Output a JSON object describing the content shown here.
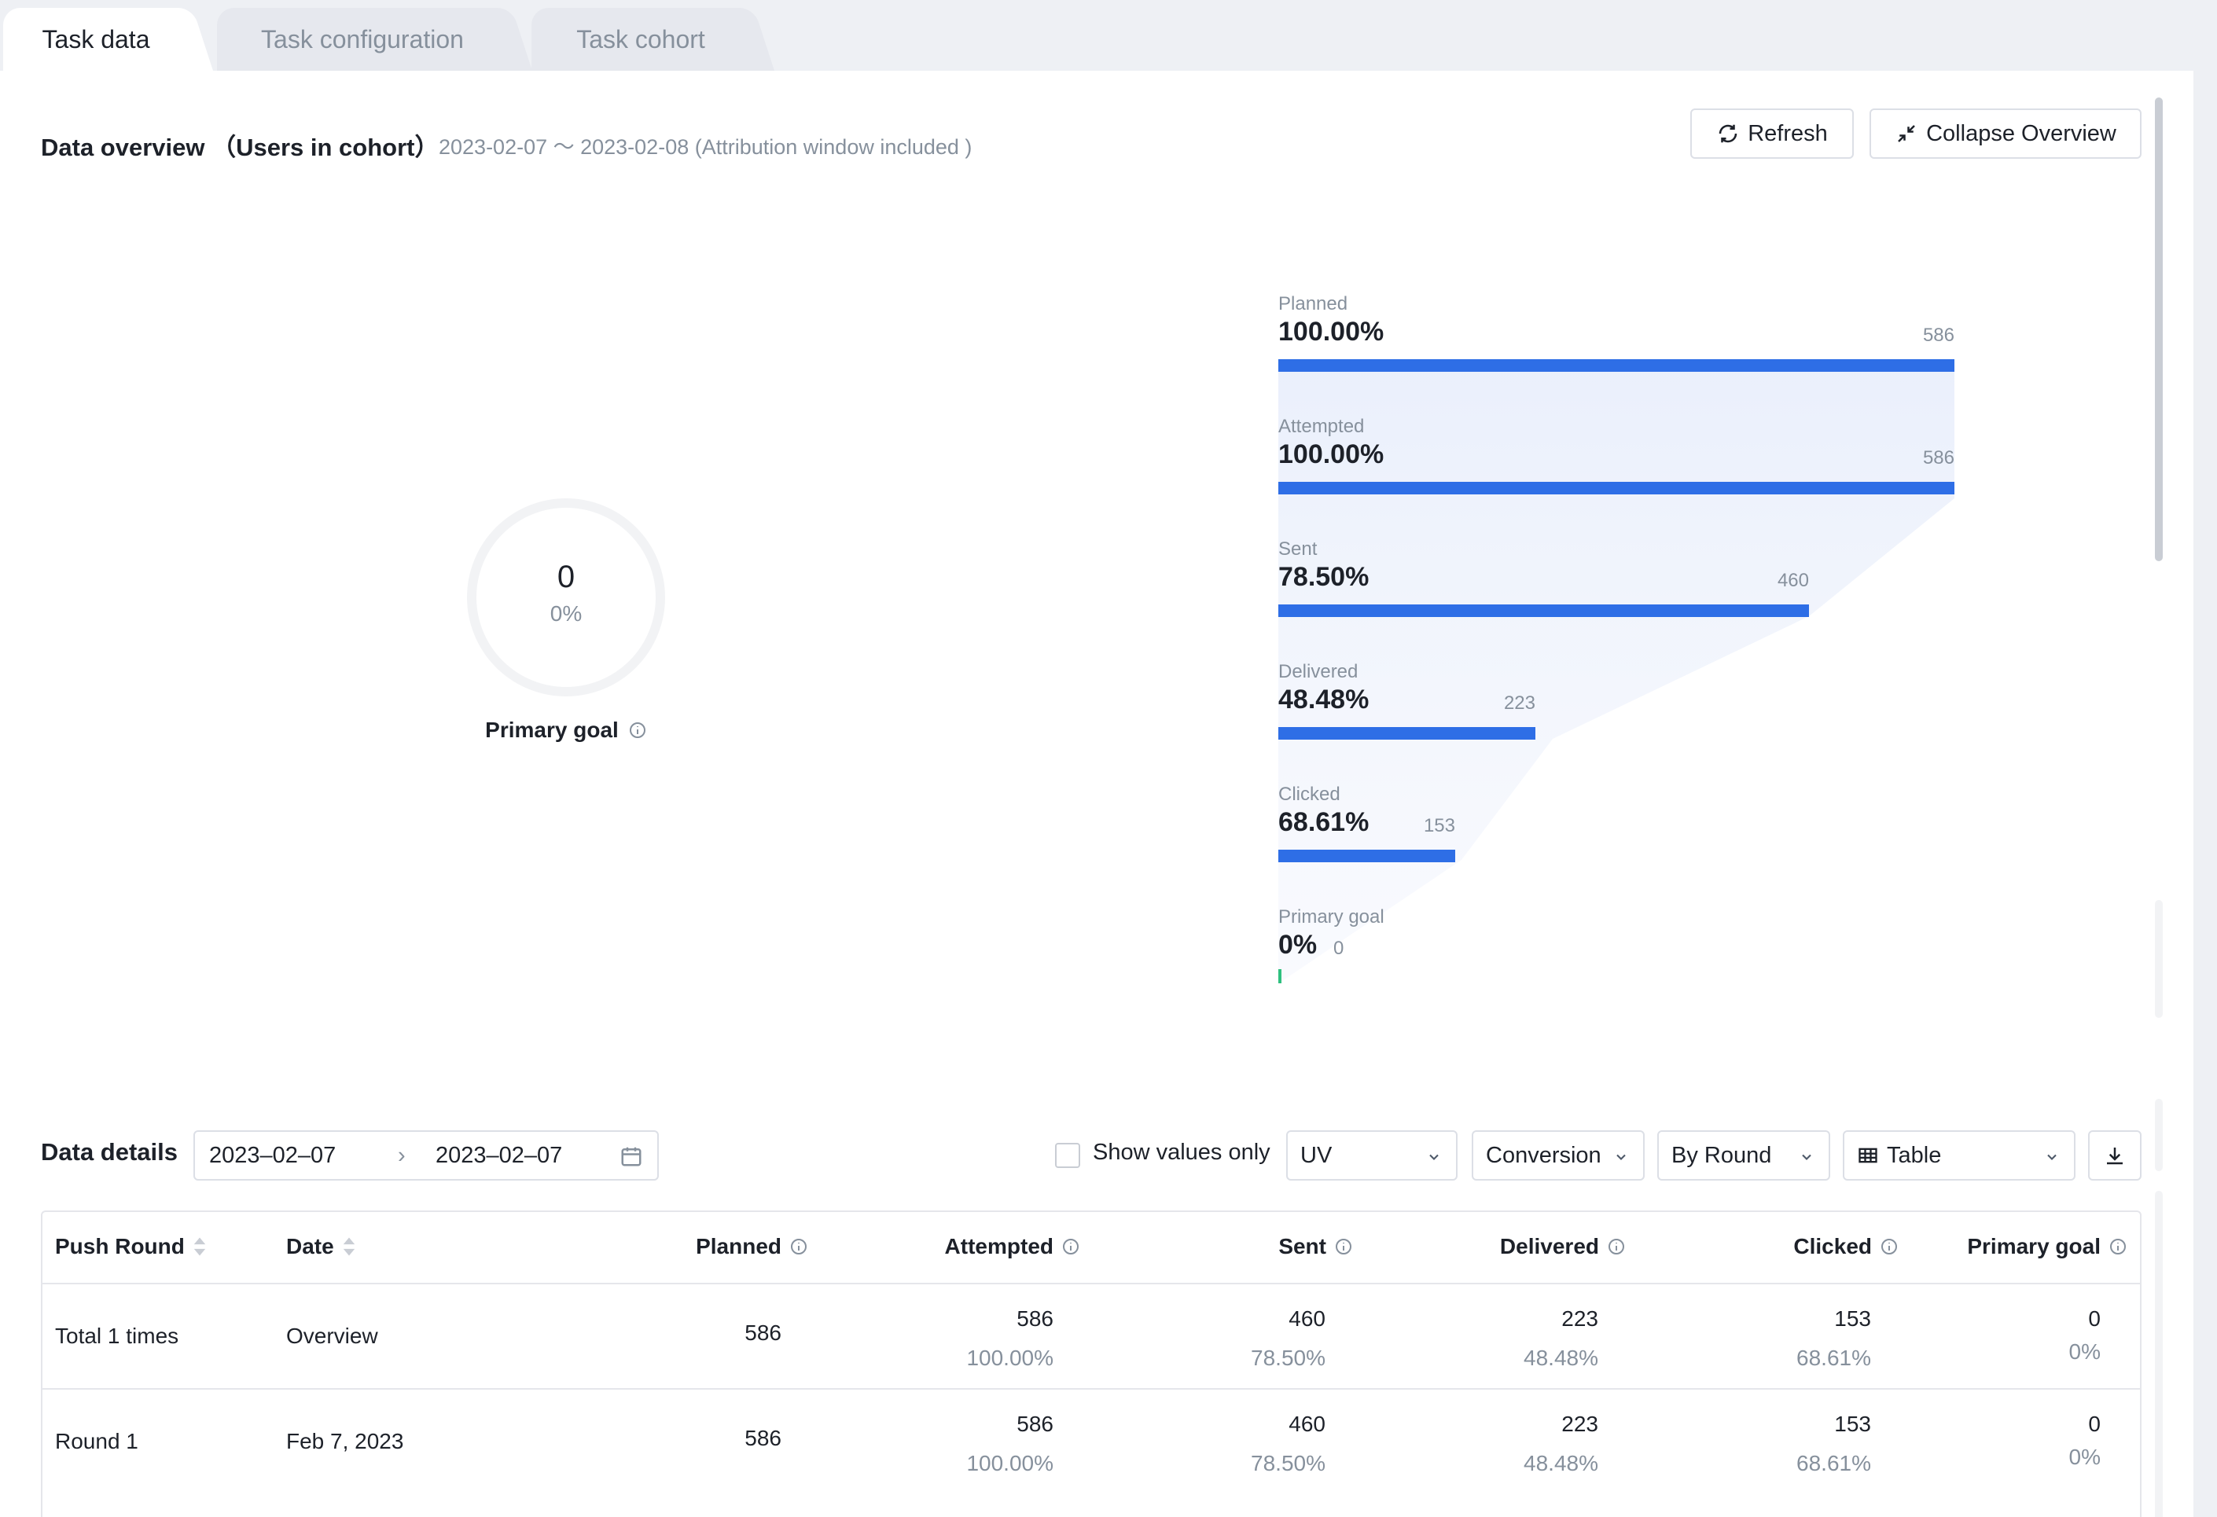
{
  "tabs": [
    {
      "label": "Task data",
      "active": true
    },
    {
      "label": "Task configuration",
      "active": false
    },
    {
      "label": "Task cohort",
      "active": false
    }
  ],
  "overview": {
    "title": "Data overview （Users in cohort）",
    "date_range": "2023-02-07 ～ 2023-02-08 (Attribution window included )",
    "refresh_label": "Refresh",
    "collapse_label": "Collapse Overview",
    "donut": {
      "value": "0",
      "percent": "0%",
      "label": "Primary goal",
      "fill_fraction": 0
    }
  },
  "funnel": [
    {
      "name": "Planned",
      "percent": "100.00%",
      "count": "586",
      "fraction": 1.0
    },
    {
      "name": "Attempted",
      "percent": "100.00%",
      "count": "586",
      "fraction": 1.0
    },
    {
      "name": "Sent",
      "percent": "78.50%",
      "count": "460",
      "fraction": 0.785
    },
    {
      "name": "Delivered",
      "percent": "48.48%",
      "count": "223",
      "fraction": 0.3806
    },
    {
      "name": "Clicked",
      "percent": "68.61%",
      "count": "153",
      "fraction": 0.2611
    },
    {
      "name": "Primary goal",
      "percent": "0%",
      "count": "0",
      "fraction": 0
    }
  ],
  "details": {
    "title": "Data details",
    "date_start": "2023–02–07",
    "date_end": "2023–02–07",
    "date_separator": "›",
    "show_values_only": "Show values only",
    "metric_select": "UV",
    "mode_select": "Conversion",
    "group_select": "By Round",
    "view_select": "Table"
  },
  "table": {
    "headers": {
      "push_round": "Push Round",
      "date": "Date",
      "planned": "Planned",
      "attempted": "Attempted",
      "sent": "Sent",
      "delivered": "Delivered",
      "clicked": "Clicked",
      "primary_goal": "Primary goal"
    },
    "rows": [
      {
        "push_round": "Total 1 times",
        "date": "Overview",
        "planned": "586",
        "attempted": "586",
        "attempted_pct": "100.00%",
        "sent": "460",
        "sent_pct": "78.50%",
        "delivered": "223",
        "delivered_pct": "48.48%",
        "clicked": "153",
        "clicked_pct": "68.61%",
        "primary_goal": "0",
        "primary_goal_pct": "0%"
      },
      {
        "push_round": "Round 1",
        "date": "Feb 7, 2023",
        "planned": "586",
        "attempted": "586",
        "attempted_pct": "100.00%",
        "sent": "460",
        "sent_pct": "78.50%",
        "delivered": "223",
        "delivered_pct": "48.48%",
        "clicked": "153",
        "clicked_pct": "68.61%",
        "primary_goal": "0",
        "primary_goal_pct": "0%"
      }
    ]
  },
  "colors": {
    "bar": "#2e6ee6",
    "goal_bar": "#2fc07f",
    "text_primary": "#1d2129",
    "text_secondary": "#86909c"
  }
}
